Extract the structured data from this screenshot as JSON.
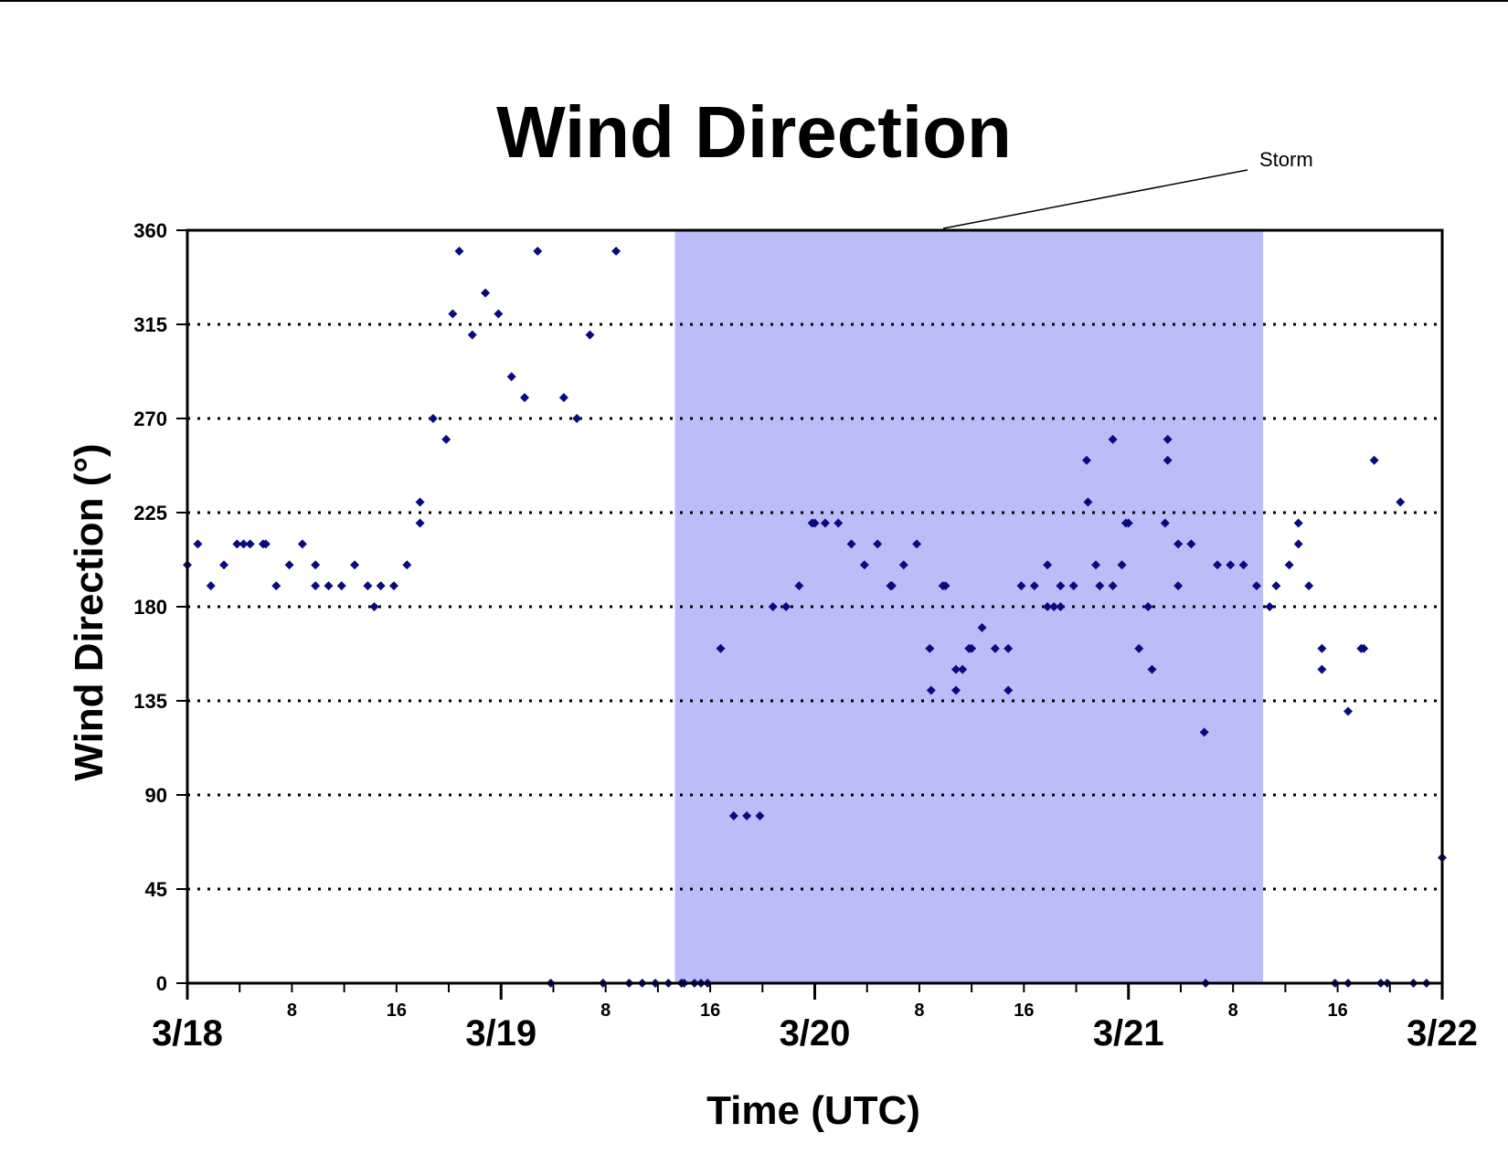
{
  "chart_data": {
    "type": "scatter",
    "title": "Wind Direction",
    "xlabel": "Time (UTC)",
    "ylabel": "Wind Direction (°)",
    "x_units": "hours since 3/18 00:00 UTC",
    "xlim": [
      0,
      96
    ],
    "ylim": [
      0,
      360
    ],
    "yticks": [
      0,
      45,
      90,
      135,
      180,
      225,
      270,
      315,
      360
    ],
    "grid": "horizontal dotted",
    "x_date_labels": [
      {
        "x": 0,
        "label": "3/18"
      },
      {
        "x": 24,
        "label": "3/19"
      },
      {
        "x": 48,
        "label": "3/20"
      },
      {
        "x": 72,
        "label": "3/21"
      },
      {
        "x": 96,
        "label": "3/22"
      }
    ],
    "x_hour_labels": [
      {
        "x": 8,
        "label": "8"
      },
      {
        "x": 16,
        "label": "16"
      },
      {
        "x": 32,
        "label": "8"
      },
      {
        "x": 40,
        "label": "16"
      },
      {
        "x": 56,
        "label": "8"
      },
      {
        "x": 64,
        "label": "16"
      },
      {
        "x": 80,
        "label": "8"
      },
      {
        "x": 88,
        "label": "16"
      }
    ],
    "shaded_region": {
      "label": "Storm",
      "x_start": 37.3,
      "x_end": 82.3,
      "color": "#bbbdf9"
    },
    "marker_color": "#0a0a80",
    "series": [
      {
        "name": "Wind Direction",
        "points": [
          [
            0,
            200
          ],
          [
            0.8,
            210
          ],
          [
            1.8,
            190
          ],
          [
            2.8,
            200
          ],
          [
            3.8,
            210
          ],
          [
            4.3,
            210
          ],
          [
            4.8,
            210
          ],
          [
            5.8,
            210
          ],
          [
            6.0,
            210
          ],
          [
            6.8,
            190
          ],
          [
            7.8,
            200
          ],
          [
            8.8,
            210
          ],
          [
            9.8,
            200
          ],
          [
            9.8,
            190
          ],
          [
            10.8,
            190
          ],
          [
            11.8,
            190
          ],
          [
            12.8,
            200
          ],
          [
            13.8,
            190
          ],
          [
            14.3,
            180
          ],
          [
            14.8,
            190
          ],
          [
            15.8,
            190
          ],
          [
            16.8,
            200
          ],
          [
            17.8,
            230
          ],
          [
            17.8,
            220
          ],
          [
            18.8,
            270
          ],
          [
            19.8,
            260
          ],
          [
            20.3,
            320
          ],
          [
            20.8,
            350
          ],
          [
            21.8,
            310
          ],
          [
            22.8,
            330
          ],
          [
            23.8,
            320
          ],
          [
            24.8,
            290
          ],
          [
            25.8,
            280
          ],
          [
            26.8,
            350
          ],
          [
            27.8,
            0
          ],
          [
            28.8,
            280
          ],
          [
            29.8,
            270
          ],
          [
            30.8,
            310
          ],
          [
            31.8,
            0
          ],
          [
            32.8,
            350
          ],
          [
            33.8,
            0
          ],
          [
            34.8,
            0
          ],
          [
            35.8,
            0
          ],
          [
            36.8,
            0
          ],
          [
            37.8,
            0
          ],
          [
            38.0,
            0
          ],
          [
            38.8,
            0
          ],
          [
            39.3,
            0
          ],
          [
            39.8,
            0
          ],
          [
            40.8,
            160
          ],
          [
            41.8,
            80
          ],
          [
            42.8,
            80
          ],
          [
            43.8,
            80
          ],
          [
            44.8,
            180
          ],
          [
            45.8,
            180
          ],
          [
            46.8,
            190
          ],
          [
            47.8,
            220
          ],
          [
            48.0,
            220
          ],
          [
            48.8,
            220
          ],
          [
            49.8,
            220
          ],
          [
            50.8,
            210
          ],
          [
            51.8,
            200
          ],
          [
            52.8,
            210
          ],
          [
            53.8,
            190
          ],
          [
            53.9,
            190
          ],
          [
            54.8,
            200
          ],
          [
            55.8,
            210
          ],
          [
            56.8,
            160
          ],
          [
            56.9,
            140
          ],
          [
            57.8,
            190
          ],
          [
            58.0,
            190
          ],
          [
            58.8,
            150
          ],
          [
            58.8,
            140
          ],
          [
            59.3,
            150
          ],
          [
            59.8,
            160
          ],
          [
            60.0,
            160
          ],
          [
            60.8,
            170
          ],
          [
            61.8,
            160
          ],
          [
            62.8,
            160
          ],
          [
            62.8,
            140
          ],
          [
            63.8,
            190
          ],
          [
            64.8,
            190
          ],
          [
            65.8,
            200
          ],
          [
            65.8,
            180
          ],
          [
            66.3,
            180
          ],
          [
            66.8,
            190
          ],
          [
            66.8,
            180
          ],
          [
            67.8,
            190
          ],
          [
            68.8,
            250
          ],
          [
            68.9,
            230
          ],
          [
            69.5,
            200
          ],
          [
            69.8,
            190
          ],
          [
            70.8,
            260
          ],
          [
            70.8,
            190
          ],
          [
            71.5,
            200
          ],
          [
            71.8,
            220
          ],
          [
            72.0,
            220
          ],
          [
            72.8,
            160
          ],
          [
            73.5,
            180
          ],
          [
            73.8,
            150
          ],
          [
            74.8,
            220
          ],
          [
            75.0,
            260
          ],
          [
            75.0,
            250
          ],
          [
            75.8,
            210
          ],
          [
            75.8,
            190
          ],
          [
            76.8,
            210
          ],
          [
            77.8,
            120
          ],
          [
            77.9,
            0
          ],
          [
            78.8,
            200
          ],
          [
            79.8,
            200
          ],
          [
            80.8,
            200
          ],
          [
            81.8,
            190
          ],
          [
            82.8,
            180
          ],
          [
            83.3,
            190
          ],
          [
            84.3,
            200
          ],
          [
            85.0,
            210
          ],
          [
            85.0,
            220
          ],
          [
            85.8,
            190
          ],
          [
            86.8,
            160
          ],
          [
            86.8,
            150
          ],
          [
            87.8,
            0
          ],
          [
            88.8,
            0
          ],
          [
            88.8,
            130
          ],
          [
            89.8,
            160
          ],
          [
            90.0,
            160
          ],
          [
            90.8,
            250
          ],
          [
            91.3,
            0
          ],
          [
            91.8,
            0
          ],
          [
            92.8,
            230
          ],
          [
            93.8,
            0
          ],
          [
            94.8,
            0
          ],
          [
            96,
            60
          ]
        ]
      }
    ]
  }
}
